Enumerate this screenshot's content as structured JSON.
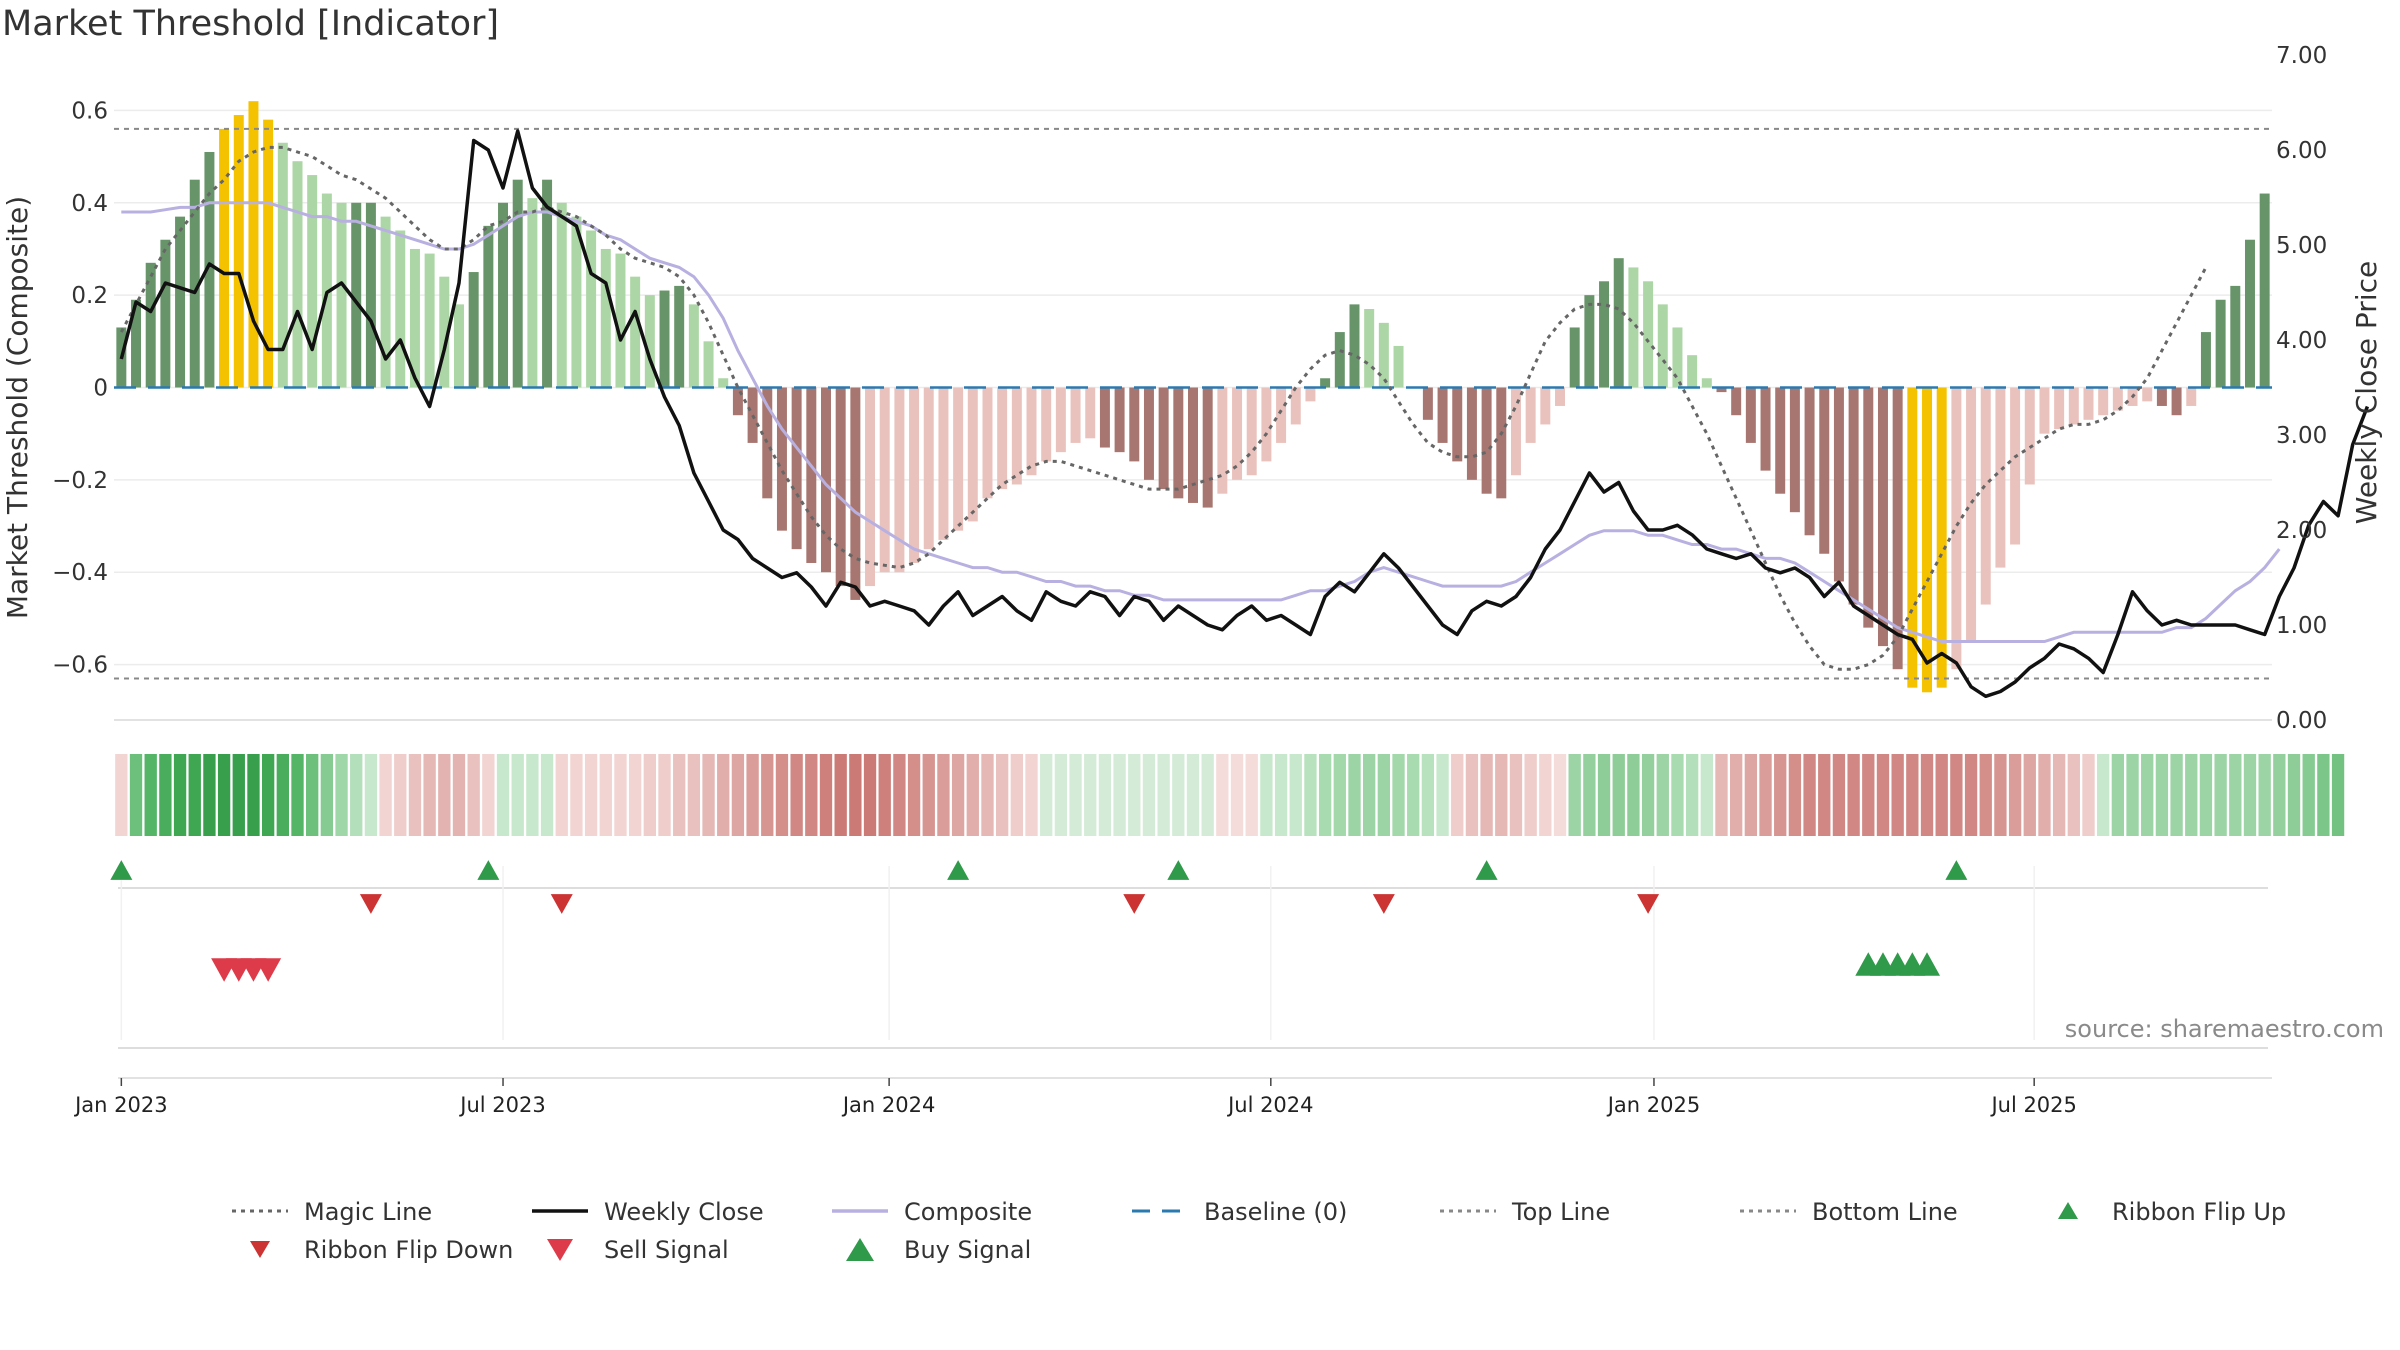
{
  "page": {
    "title": "Market Threshold [Indicator]",
    "source": "source: sharemaestro.com"
  },
  "legend": [
    {
      "label": "Magic Line",
      "kind": "dot-line",
      "color": "#666666"
    },
    {
      "label": "Weekly Close",
      "kind": "solid-line",
      "color": "#111111"
    },
    {
      "label": "Composite",
      "kind": "solid-line",
      "color": "#b8b0e0"
    },
    {
      "label": "Baseline (0)",
      "kind": "dash-line",
      "color": "#2a7ab0"
    },
    {
      "label": "Top Line",
      "kind": "dot-line",
      "color": "#888888"
    },
    {
      "label": "Bottom Line",
      "kind": "dot-line",
      "color": "#888888"
    },
    {
      "label": "Ribbon Flip Up",
      "kind": "tri-up",
      "color": "#2f9a4a"
    },
    {
      "label": "Ribbon Flip Down",
      "kind": "tri-down",
      "color": "#cc3333"
    },
    {
      "label": "Sell Signal",
      "kind": "tri-down-big",
      "color": "#dd3b4a"
    },
    {
      "label": "Buy Signal",
      "kind": "tri-up-big",
      "color": "#2f9a4a"
    }
  ],
  "chart_data": {
    "type": "bar",
    "ylabel": "Market Threshold (Composite)",
    "y2label": "Weekly Close Price",
    "ylim": [
      -0.72,
      0.72
    ],
    "y2lim": [
      0,
      7
    ],
    "yticks": [
      0.6,
      0.4,
      0.2,
      0,
      -0.2,
      -0.4,
      -0.6
    ],
    "ytick_labels": [
      "0.6",
      "0.4",
      "0.2",
      "0",
      "−0.2",
      "−0.4",
      "−0.6"
    ],
    "y2ticks": [
      7,
      6,
      5,
      4,
      3,
      2,
      1,
      0
    ],
    "y2tick_labels": [
      "7.00",
      "6.00",
      "5.00",
      "4.00",
      "3.00",
      "2.00",
      "1.00",
      "0.00"
    ],
    "xticks": [
      {
        "label": "Jan 2023",
        "week": 0
      },
      {
        "label": "Jul 2023",
        "week": 26
      },
      {
        "label": "Jan 2024",
        "week": 52.3
      },
      {
        "label": "Jul 2024",
        "week": 78.3
      },
      {
        "label": "Jan 2025",
        "week": 104.4
      },
      {
        "label": "Jul 2025",
        "week": 130.3
      }
    ],
    "top_line": 0.56,
    "bottom_line": -0.63,
    "baseline": 0,
    "composite_bars": [
      0.13,
      0.19,
      0.27,
      0.32,
      0.37,
      0.45,
      0.51,
      0.56,
      0.59,
      0.62,
      0.58,
      0.53,
      0.49,
      0.46,
      0.42,
      0.4,
      0.4,
      0.4,
      0.37,
      0.34,
      0.3,
      0.29,
      0.24,
      0.18,
      0.25,
      0.35,
      0.4,
      0.45,
      0.41,
      0.45,
      0.4,
      0.37,
      0.34,
      0.3,
      0.29,
      0.24,
      0.2,
      0.21,
      0.22,
      0.18,
      0.1,
      0.02,
      -0.06,
      -0.12,
      -0.24,
      -0.31,
      -0.35,
      -0.38,
      -0.4,
      -0.43,
      -0.46,
      -0.43,
      -0.4,
      -0.4,
      -0.38,
      -0.35,
      -0.33,
      -0.31,
      -0.29,
      -0.24,
      -0.22,
      -0.21,
      -0.19,
      -0.16,
      -0.14,
      -0.12,
      -0.11,
      -0.13,
      -0.14,
      -0.16,
      -0.2,
      -0.22,
      -0.24,
      -0.25,
      -0.26,
      -0.23,
      -0.2,
      -0.19,
      -0.16,
      -0.12,
      -0.08,
      -0.03,
      0.02,
      0.12,
      0.18,
      0.17,
      0.14,
      0.09,
      0.0,
      -0.07,
      -0.12,
      -0.16,
      -0.2,
      -0.23,
      -0.24,
      -0.19,
      -0.12,
      -0.08,
      -0.04,
      0.13,
      0.2,
      0.23,
      0.28,
      0.26,
      0.23,
      0.18,
      0.13,
      0.07,
      0.02,
      -0.01,
      -0.06,
      -0.12,
      -0.18,
      -0.23,
      -0.27,
      -0.32,
      -0.36,
      -0.42,
      -0.47,
      -0.52,
      -0.56,
      -0.61,
      -0.65,
      -0.66,
      -0.65,
      -0.61,
      -0.55,
      -0.47,
      -0.39,
      -0.34,
      -0.21,
      -0.1,
      -0.09,
      -0.08,
      -0.07,
      -0.06,
      -0.05,
      -0.04,
      -0.03,
      -0.04,
      -0.06,
      -0.04,
      0.12,
      0.19,
      0.22,
      0.32,
      0.42
    ],
    "weekly_close": [
      3.8,
      4.4,
      4.3,
      4.6,
      4.55,
      4.5,
      4.8,
      4.7,
      4.7,
      4.2,
      3.9,
      3.9,
      4.3,
      3.9,
      4.5,
      4.6,
      4.4,
      4.2,
      3.8,
      4.0,
      3.6,
      3.3,
      3.9,
      4.6,
      6.1,
      6.0,
      5.6,
      6.2,
      5.6,
      5.4,
      5.3,
      5.2,
      4.7,
      4.6,
      4.0,
      4.3,
      3.8,
      3.4,
      3.1,
      2.6,
      2.3,
      2.0,
      1.9,
      1.7,
      1.6,
      1.5,
      1.55,
      1.4,
      1.2,
      1.45,
      1.4,
      1.2,
      1.25,
      1.2,
      1.15,
      1.0,
      1.2,
      1.35,
      1.1,
      1.2,
      1.3,
      1.15,
      1.05,
      1.35,
      1.25,
      1.2,
      1.35,
      1.3,
      1.1,
      1.3,
      1.25,
      1.05,
      1.2,
      1.1,
      1.0,
      0.95,
      1.1,
      1.2,
      1.05,
      1.1,
      1.0,
      0.9,
      1.3,
      1.45,
      1.35,
      1.55,
      1.75,
      1.6,
      1.4,
      1.2,
      1.0,
      0.9,
      1.15,
      1.25,
      1.2,
      1.3,
      1.5,
      1.8,
      2.0,
      2.3,
      2.6,
      2.4,
      2.5,
      2.2,
      2.0,
      2.0,
      2.05,
      1.95,
      1.8,
      1.75,
      1.7,
      1.75,
      1.6,
      1.55,
      1.6,
      1.5,
      1.3,
      1.45,
      1.2,
      1.1,
      1.0,
      0.9,
      0.85,
      0.6,
      0.7,
      0.6,
      0.35,
      0.25,
      0.3,
      0.4,
      0.55,
      0.65,
      0.8,
      0.75,
      0.65,
      0.5,
      0.9,
      1.35,
      1.15,
      1.0,
      1.05,
      1.0,
      1.0,
      1.0,
      1.0,
      0.95,
      0.9,
      1.3,
      1.6,
      2.05,
      2.3,
      2.15,
      2.9,
      3.3
    ],
    "composite_line": [
      0.38,
      0.38,
      0.38,
      0.385,
      0.39,
      0.39,
      0.4,
      0.4,
      0.4,
      0.4,
      0.4,
      0.39,
      0.38,
      0.37,
      0.37,
      0.36,
      0.36,
      0.35,
      0.34,
      0.33,
      0.32,
      0.31,
      0.3,
      0.3,
      0.31,
      0.33,
      0.35,
      0.37,
      0.38,
      0.38,
      0.37,
      0.36,
      0.35,
      0.33,
      0.32,
      0.3,
      0.28,
      0.27,
      0.26,
      0.24,
      0.2,
      0.15,
      0.08,
      0.02,
      -0.04,
      -0.09,
      -0.13,
      -0.17,
      -0.21,
      -0.24,
      -0.27,
      -0.29,
      -0.31,
      -0.33,
      -0.35,
      -0.36,
      -0.37,
      -0.38,
      -0.39,
      -0.39,
      -0.4,
      -0.4,
      -0.41,
      -0.42,
      -0.42,
      -0.43,
      -0.43,
      -0.44,
      -0.44,
      -0.45,
      -0.45,
      -0.46,
      -0.46,
      -0.46,
      -0.46,
      -0.46,
      -0.46,
      -0.46,
      -0.46,
      -0.46,
      -0.45,
      -0.44,
      -0.44,
      -0.43,
      -0.42,
      -0.4,
      -0.39,
      -0.4,
      -0.41,
      -0.42,
      -0.43,
      -0.43,
      -0.43,
      -0.43,
      -0.43,
      -0.42,
      -0.4,
      -0.38,
      -0.36,
      -0.34,
      -0.32,
      -0.31,
      -0.31,
      -0.31,
      -0.32,
      -0.32,
      -0.33,
      -0.34,
      -0.34,
      -0.35,
      -0.35,
      -0.36,
      -0.37,
      -0.37,
      -0.38,
      -0.4,
      -0.42,
      -0.44,
      -0.46,
      -0.48,
      -0.5,
      -0.52,
      -0.53,
      -0.54,
      -0.55,
      -0.55,
      -0.55,
      -0.55,
      -0.55,
      -0.55,
      -0.55,
      -0.55,
      -0.54,
      -0.53,
      -0.53,
      -0.53,
      -0.53,
      -0.53,
      -0.53,
      -0.53,
      -0.52,
      -0.52,
      -0.5,
      -0.47,
      -0.44,
      -0.42,
      -0.39,
      -0.35
    ],
    "magic_line": [
      0.12,
      0.18,
      0.24,
      0.3,
      0.34,
      0.38,
      0.42,
      0.45,
      0.49,
      0.51,
      0.52,
      0.52,
      0.51,
      0.5,
      0.48,
      0.46,
      0.45,
      0.43,
      0.41,
      0.38,
      0.35,
      0.32,
      0.3,
      0.3,
      0.32,
      0.35,
      0.36,
      0.38,
      0.38,
      0.39,
      0.38,
      0.37,
      0.35,
      0.33,
      0.3,
      0.28,
      0.27,
      0.26,
      0.24,
      0.2,
      0.14,
      0.07,
      0.0,
      -0.06,
      -0.12,
      -0.18,
      -0.23,
      -0.28,
      -0.32,
      -0.35,
      -0.37,
      -0.38,
      -0.385,
      -0.39,
      -0.38,
      -0.36,
      -0.33,
      -0.3,
      -0.27,
      -0.24,
      -0.21,
      -0.19,
      -0.17,
      -0.16,
      -0.16,
      -0.17,
      -0.18,
      -0.19,
      -0.2,
      -0.21,
      -0.22,
      -0.22,
      -0.22,
      -0.21,
      -0.2,
      -0.19,
      -0.17,
      -0.14,
      -0.1,
      -0.05,
      0.0,
      0.04,
      0.07,
      0.08,
      0.07,
      0.05,
      0.02,
      -0.03,
      -0.08,
      -0.12,
      -0.14,
      -0.15,
      -0.15,
      -0.14,
      -0.1,
      -0.04,
      0.03,
      0.1,
      0.14,
      0.17,
      0.18,
      0.18,
      0.17,
      0.14,
      0.1,
      0.06,
      0.02,
      -0.04,
      -0.1,
      -0.17,
      -0.24,
      -0.31,
      -0.38,
      -0.45,
      -0.51,
      -0.56,
      -0.6,
      -0.61,
      -0.61,
      -0.6,
      -0.58,
      -0.54,
      -0.48,
      -0.42,
      -0.36,
      -0.3,
      -0.25,
      -0.21,
      -0.18,
      -0.15,
      -0.13,
      -0.11,
      -0.09,
      -0.08,
      -0.08,
      -0.07,
      -0.05,
      -0.02,
      0.02,
      0.08,
      0.14,
      0.2,
      0.26
    ],
    "ribbon": [
      [
        0.13,
        "#f2d4d2"
      ],
      [
        0.2,
        "#6cc07b"
      ],
      [
        0.3,
        "#54b567"
      ],
      [
        0.35,
        "#49ad5d"
      ],
      [
        0.4,
        "#3fa652"
      ],
      [
        0.45,
        "#3fa652"
      ],
      [
        0.5,
        "#389f4d"
      ],
      [
        0.55,
        "#389f4d"
      ],
      [
        0.6,
        "#389f4d"
      ],
      [
        0.6,
        "#389f4d"
      ],
      [
        0.55,
        "#3fa652"
      ],
      [
        0.5,
        "#49ad5d"
      ],
      [
        0.45,
        "#54b567"
      ],
      [
        0.4,
        "#6cc07b"
      ],
      [
        0.35,
        "#86cc92"
      ],
      [
        0.3,
        "#9fd7a9"
      ],
      [
        0.25,
        "#b3dfba"
      ],
      [
        0.2,
        "#c7e8cc"
      ],
      [
        -0.1,
        "#f2d4d2"
      ],
      [
        -0.12,
        "#eecdcb"
      ],
      [
        -0.15,
        "#e9c2c0"
      ],
      [
        -0.18,
        "#e5b7b5"
      ],
      [
        -0.2,
        "#e3b3b1"
      ],
      [
        -0.2,
        "#e3b3b1"
      ],
      [
        -0.15,
        "#e9c2c0"
      ],
      [
        -0.1,
        "#f2d4d2"
      ],
      [
        0.2,
        "#c7e8cc"
      ],
      [
        0.25,
        "#c7e8cc"
      ],
      [
        0.25,
        "#c7e8cc"
      ],
      [
        0.25,
        "#c7e8cc"
      ],
      [
        -0.1,
        "#f2d4d2"
      ],
      [
        -0.12,
        "#f2d4d2"
      ],
      [
        -0.12,
        "#f2d4d2"
      ],
      [
        -0.12,
        "#f2d4d2"
      ],
      [
        -0.12,
        "#f2d4d2"
      ],
      [
        -0.12,
        "#f2d4d2"
      ],
      [
        -0.15,
        "#eecdcb"
      ],
      [
        -0.15,
        "#eecdcb"
      ],
      [
        -0.18,
        "#e9c2c0"
      ],
      [
        -0.18,
        "#e9c2c0"
      ],
      [
        -0.2,
        "#e5b7b5"
      ],
      [
        -0.22,
        "#e2aeab"
      ],
      [
        -0.25,
        "#dea6a3"
      ],
      [
        -0.28,
        "#da9d9a"
      ],
      [
        -0.3,
        "#d79592"
      ],
      [
        -0.32,
        "#d48f8b"
      ],
      [
        -0.35,
        "#d18884"
      ],
      [
        -0.35,
        "#d18884"
      ],
      [
        -0.38,
        "#ce807c"
      ],
      [
        -0.4,
        "#cc7a76"
      ],
      [
        -0.4,
        "#cc7a76"
      ],
      [
        -0.4,
        "#cc7a76"
      ],
      [
        -0.38,
        "#ce807c"
      ],
      [
        -0.35,
        "#d18884"
      ],
      [
        -0.32,
        "#d48f8b"
      ],
      [
        -0.3,
        "#d79592"
      ],
      [
        -0.28,
        "#da9d9a"
      ],
      [
        -0.25,
        "#dea6a3"
      ],
      [
        -0.22,
        "#e2aeab"
      ],
      [
        -0.2,
        "#e5b7b5"
      ],
      [
        -0.18,
        "#e9c2c0"
      ],
      [
        -0.15,
        "#eecdcb"
      ],
      [
        -0.12,
        "#f2d4d2"
      ],
      [
        0.2,
        "#d4ecd7"
      ],
      [
        0.2,
        "#d4ecd7"
      ],
      [
        0.2,
        "#d4ecd7"
      ],
      [
        0.2,
        "#d4ecd7"
      ],
      [
        0.2,
        "#d4ecd7"
      ],
      [
        0.2,
        "#d4ecd7"
      ],
      [
        0.2,
        "#d4ecd7"
      ],
      [
        0.2,
        "#d4ecd7"
      ],
      [
        0.2,
        "#d4ecd7"
      ],
      [
        0.2,
        "#d4ecd7"
      ],
      [
        0.2,
        "#d4ecd7"
      ],
      [
        0.2,
        "#d4ecd7"
      ],
      [
        -0.1,
        "#f4dcda"
      ],
      [
        -0.1,
        "#f4dcda"
      ],
      [
        -0.1,
        "#f4dcda"
      ],
      [
        0.25,
        "#c7e8cc"
      ],
      [
        0.25,
        "#c7e8cc"
      ],
      [
        0.25,
        "#c7e8cc"
      ],
      [
        0.28,
        "#b8e1be"
      ],
      [
        0.3,
        "#a9dbb1"
      ],
      [
        0.32,
        "#a3d8ab"
      ],
      [
        0.35,
        "#9cd4a5"
      ],
      [
        0.35,
        "#9cd4a5"
      ],
      [
        0.35,
        "#9cd4a5"
      ],
      [
        0.32,
        "#a3d8ab"
      ],
      [
        0.3,
        "#a9dbb1"
      ],
      [
        0.28,
        "#b8e1be"
      ],
      [
        0.25,
        "#c7e8cc"
      ],
      [
        -0.15,
        "#eecdcb"
      ],
      [
        -0.18,
        "#e9c2c0"
      ],
      [
        -0.2,
        "#e5b7b5"
      ],
      [
        -0.2,
        "#e5b7b5"
      ],
      [
        -0.18,
        "#e9c2c0"
      ],
      [
        -0.15,
        "#eecdcb"
      ],
      [
        -0.12,
        "#f2d4d2"
      ],
      [
        -0.1,
        "#f4dcda"
      ],
      [
        0.35,
        "#9cd4a5"
      ],
      [
        0.38,
        "#94d09e"
      ],
      [
        0.4,
        "#8ecd98"
      ],
      [
        0.4,
        "#8ecd98"
      ],
      [
        0.4,
        "#8ecd98"
      ],
      [
        0.38,
        "#94d09e"
      ],
      [
        0.35,
        "#9cd4a5"
      ],
      [
        0.32,
        "#a9dbb1"
      ],
      [
        0.3,
        "#b3dfba"
      ],
      [
        0.28,
        "#c7e8cc"
      ],
      [
        -0.2,
        "#e5b7b5"
      ],
      [
        -0.22,
        "#e2aeab"
      ],
      [
        -0.25,
        "#dea6a3"
      ],
      [
        -0.28,
        "#da9d9a"
      ],
      [
        -0.3,
        "#d79592"
      ],
      [
        -0.32,
        "#d48f8b"
      ],
      [
        -0.35,
        "#d18884"
      ],
      [
        -0.35,
        "#d18884"
      ],
      [
        -0.35,
        "#d18884"
      ],
      [
        -0.35,
        "#d18884"
      ],
      [
        -0.35,
        "#d18884"
      ],
      [
        -0.35,
        "#d18884"
      ],
      [
        -0.35,
        "#d18884"
      ],
      [
        -0.35,
        "#d18884"
      ],
      [
        -0.35,
        "#d18884"
      ],
      [
        -0.35,
        "#d18884"
      ],
      [
        -0.35,
        "#d18884"
      ],
      [
        -0.35,
        "#d18884"
      ],
      [
        -0.32,
        "#d48f8b"
      ],
      [
        -0.3,
        "#d79592"
      ],
      [
        -0.28,
        "#da9d9a"
      ],
      [
        -0.25,
        "#dea6a3"
      ],
      [
        -0.22,
        "#e2aeab"
      ],
      [
        -0.2,
        "#e5b7b5"
      ],
      [
        -0.18,
        "#e9c2c0"
      ],
      [
        -0.15,
        "#eecdcb"
      ],
      [
        0.2,
        "#c7e8cc"
      ],
      [
        0.35,
        "#9cd4a5"
      ],
      [
        0.35,
        "#9cd4a5"
      ],
      [
        0.35,
        "#9cd4a5"
      ],
      [
        0.35,
        "#9cd4a5"
      ],
      [
        0.35,
        "#9cd4a5"
      ],
      [
        0.35,
        "#9cd4a5"
      ],
      [
        0.35,
        "#9cd4a5"
      ],
      [
        0.35,
        "#9cd4a5"
      ],
      [
        0.35,
        "#9cd4a5"
      ],
      [
        0.35,
        "#9cd4a5"
      ],
      [
        0.35,
        "#9cd4a5"
      ],
      [
        0.38,
        "#94d09e"
      ],
      [
        0.4,
        "#8ecd98"
      ],
      [
        0.42,
        "#86cc92"
      ],
      [
        0.45,
        "#7dc689"
      ],
      [
        0.48,
        "#74c282"
      ]
    ],
    "ribbon_flip_up_weeks": [
      0,
      25,
      57,
      72,
      93,
      125
    ],
    "ribbon_flip_down_weeks": [
      17,
      30,
      69,
      86,
      104
    ],
    "sell_signal_weeks": [
      7,
      8,
      9,
      10
    ],
    "buy_signal_weeks": [
      119,
      120,
      121,
      122,
      123
    ]
  }
}
